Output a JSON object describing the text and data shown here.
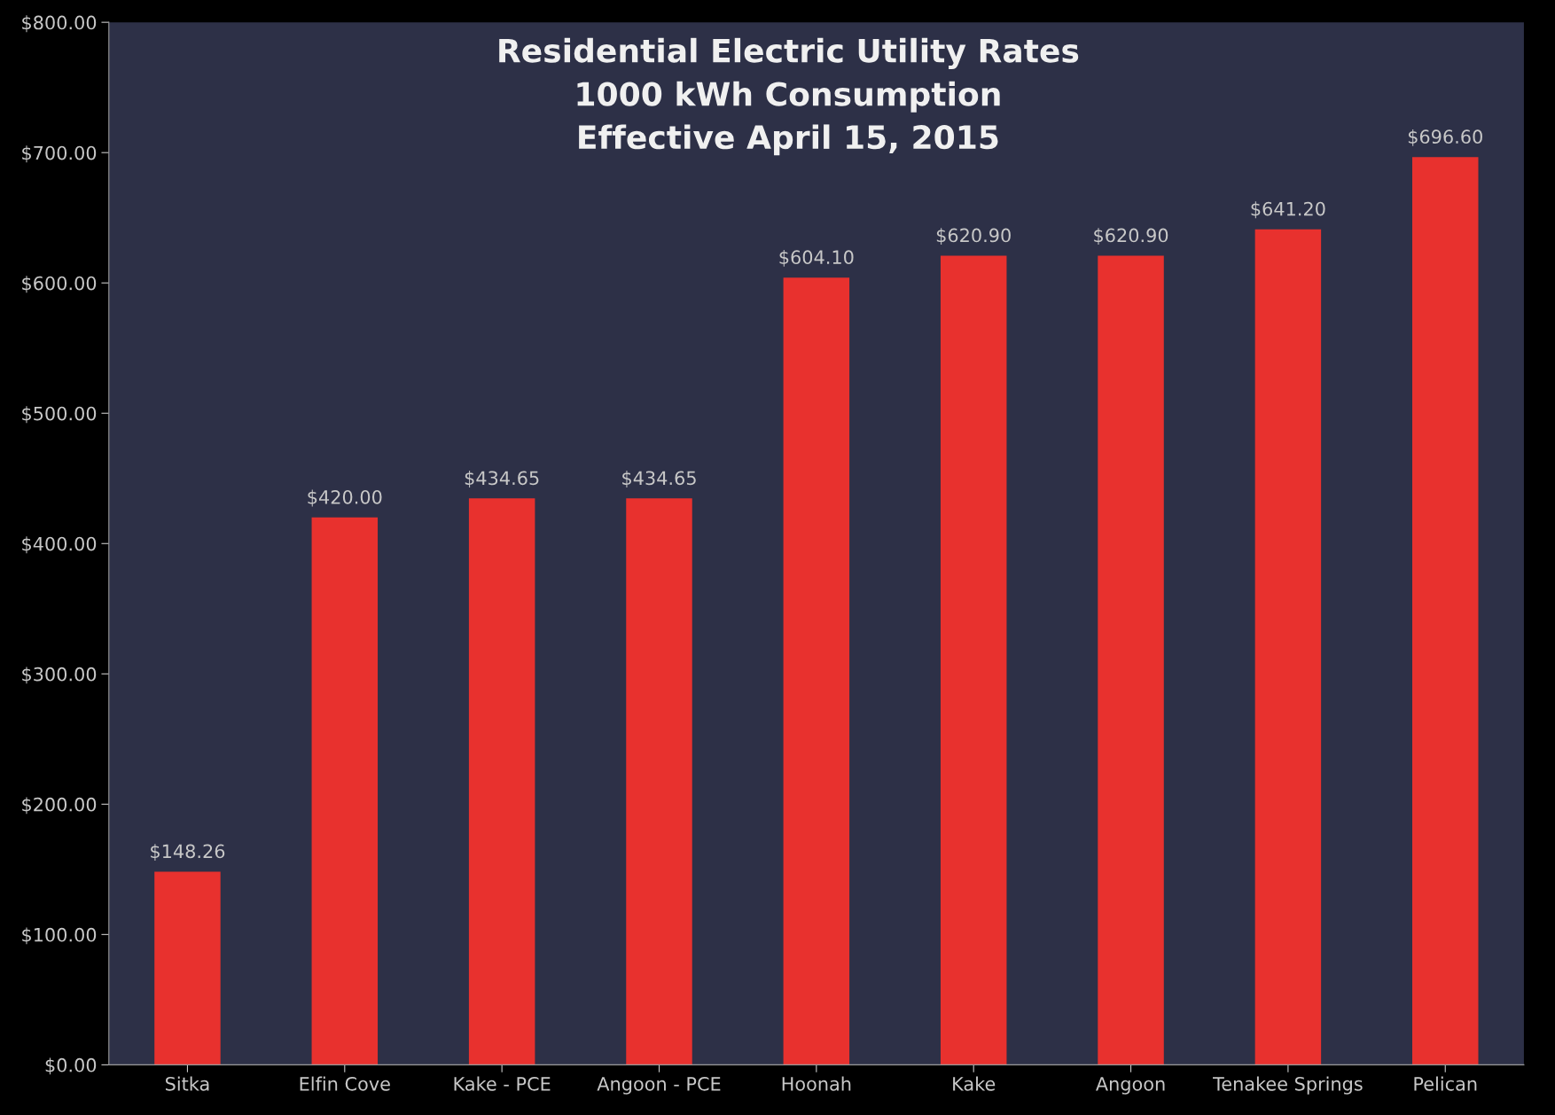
{
  "chart_data": {
    "type": "bar",
    "title": "Residential Electric Utility Rates\n1000 kWh Consumption\nEffective April 15, 2015",
    "categories": [
      "Sitka",
      "Elfin Cove",
      "Kake - PCE",
      "Angoon - PCE",
      "Hoonah",
      "Kake",
      "Angoon",
      "Tenakee Springs",
      "Pelican"
    ],
    "values": [
      148.26,
      420.0,
      434.65,
      434.65,
      604.1,
      620.9,
      620.9,
      641.2,
      696.6
    ],
    "value_labels": [
      "$148.26",
      "$420.00",
      "$434.65",
      "$434.65",
      "$604.10",
      "$620.90",
      "$620.90",
      "$641.20",
      "$696.60"
    ],
    "color": "#e8312e",
    "ylim": [
      0,
      800
    ],
    "yticks": [
      {
        "value": 0,
        "label": "$0.00"
      },
      {
        "value": 100,
        "label": "$100.00"
      },
      {
        "value": 200,
        "label": "$200.00"
      },
      {
        "value": 300,
        "label": "$300.00"
      },
      {
        "value": 400,
        "label": "$400.00"
      },
      {
        "value": 500,
        "label": "$500.00"
      },
      {
        "value": 600,
        "label": "$600.00"
      },
      {
        "value": 700,
        "label": "$700.00"
      },
      {
        "value": 800,
        "label": "$800.00"
      }
    ],
    "grid": false
  }
}
